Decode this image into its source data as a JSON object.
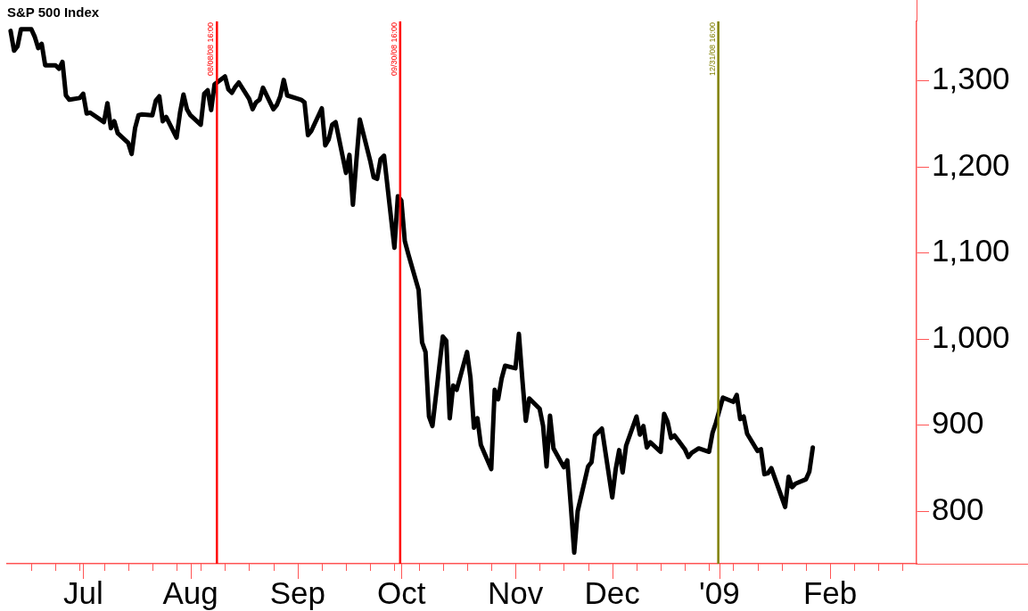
{
  "chart_data": {
    "type": "line",
    "title": "S&P 500 Index",
    "x": [
      "2008-06-10",
      "2008-06-11",
      "2008-06-12",
      "2008-06-13",
      "2008-06-16",
      "2008-06-17",
      "2008-06-18",
      "2008-06-19",
      "2008-06-20",
      "2008-06-23",
      "2008-06-24",
      "2008-06-25",
      "2008-06-26",
      "2008-06-27",
      "2008-06-30",
      "2008-07-01",
      "2008-07-02",
      "2008-07-03",
      "2008-07-07",
      "2008-07-08",
      "2008-07-09",
      "2008-07-10",
      "2008-07-11",
      "2008-07-14",
      "2008-07-15",
      "2008-07-16",
      "2008-07-17",
      "2008-07-18",
      "2008-07-21",
      "2008-07-22",
      "2008-07-23",
      "2008-07-24",
      "2008-07-25",
      "2008-07-28",
      "2008-07-29",
      "2008-07-30",
      "2008-07-31",
      "2008-08-01",
      "2008-08-04",
      "2008-08-05",
      "2008-08-06",
      "2008-08-07",
      "2008-08-08",
      "2008-08-11",
      "2008-08-12",
      "2008-08-13",
      "2008-08-14",
      "2008-08-15",
      "2008-08-18",
      "2008-08-19",
      "2008-08-20",
      "2008-08-21",
      "2008-08-22",
      "2008-08-25",
      "2008-08-26",
      "2008-08-27",
      "2008-08-28",
      "2008-08-29",
      "2008-09-02",
      "2008-09-03",
      "2008-09-04",
      "2008-09-05",
      "2008-09-08",
      "2008-09-09",
      "2008-09-10",
      "2008-09-11",
      "2008-09-12",
      "2008-09-15",
      "2008-09-16",
      "2008-09-17",
      "2008-09-18",
      "2008-09-19",
      "2008-09-22",
      "2008-09-23",
      "2008-09-24",
      "2008-09-25",
      "2008-09-26",
      "2008-09-29",
      "2008-09-30",
      "2008-10-01",
      "2008-10-02",
      "2008-10-03",
      "2008-10-06",
      "2008-10-07",
      "2008-10-08",
      "2008-10-09",
      "2008-10-10",
      "2008-10-13",
      "2008-10-14",
      "2008-10-15",
      "2008-10-16",
      "2008-10-17",
      "2008-10-20",
      "2008-10-21",
      "2008-10-22",
      "2008-10-23",
      "2008-10-24",
      "2008-10-27",
      "2008-10-28",
      "2008-10-29",
      "2008-10-30",
      "2008-10-31",
      "2008-11-03",
      "2008-11-04",
      "2008-11-05",
      "2008-11-06",
      "2008-11-07",
      "2008-11-10",
      "2008-11-11",
      "2008-11-12",
      "2008-11-13",
      "2008-11-14",
      "2008-11-17",
      "2008-11-18",
      "2008-11-19",
      "2008-11-20",
      "2008-11-21",
      "2008-11-24",
      "2008-11-25",
      "2008-11-26",
      "2008-11-28",
      "2008-12-01",
      "2008-12-02",
      "2008-12-03",
      "2008-12-04",
      "2008-12-05",
      "2008-12-08",
      "2008-12-09",
      "2008-12-10",
      "2008-12-11",
      "2008-12-12",
      "2008-12-15",
      "2008-12-16",
      "2008-12-17",
      "2008-12-18",
      "2008-12-19",
      "2008-12-22",
      "2008-12-23",
      "2008-12-24",
      "2008-12-26",
      "2008-12-29",
      "2008-12-30",
      "2008-12-31",
      "2009-01-02",
      "2009-01-05",
      "2009-01-06",
      "2009-01-07",
      "2009-01-08",
      "2009-01-09",
      "2009-01-12",
      "2009-01-13",
      "2009-01-14",
      "2009-01-15",
      "2009-01-16",
      "2009-01-20",
      "2009-01-21",
      "2009-01-22",
      "2009-01-23",
      "2009-01-26",
      "2009-01-27",
      "2009-01-28"
    ],
    "series": [
      {
        "color": "#000000",
        "values": [
          1358,
          1335,
          1340,
          1360,
          1360,
          1351,
          1338,
          1343,
          1318,
          1318,
          1314,
          1322,
          1283,
          1278,
          1280,
          1285,
          1262,
          1263,
          1252,
          1274,
          1245,
          1253,
          1239,
          1228,
          1215,
          1245,
          1260,
          1261,
          1260,
          1277,
          1282,
          1253,
          1258,
          1234,
          1263,
          1284,
          1267,
          1260,
          1249,
          1285,
          1289,
          1266,
          1296,
          1305,
          1290,
          1286,
          1293,
          1298,
          1279,
          1267,
          1275,
          1278,
          1292,
          1267,
          1272,
          1282,
          1301,
          1283,
          1278,
          1275,
          1237,
          1242,
          1268,
          1225,
          1232,
          1249,
          1252,
          1193,
          1214,
          1156,
          1207,
          1255,
          1207,
          1188,
          1186,
          1209,
          1213,
          1106,
          1166,
          1161,
          1114,
          1099,
          1057,
          996,
          985,
          910,
          899,
          1003,
          998,
          908,
          946,
          941,
          985,
          955,
          897,
          908,
          877,
          849,
          941,
          930,
          954,
          969,
          966,
          1006,
          953,
          905,
          931,
          919,
          899,
          852,
          911,
          873,
          851,
          859,
          807,
          752,
          800,
          852,
          857,
          888,
          896,
          816,
          849,
          871,
          845,
          876,
          910,
          889,
          899,
          874,
          880,
          869,
          913,
          904,
          885,
          888,
          872,
          863,
          868,
          873,
          869,
          891,
          903,
          932,
          927,
          935,
          907,
          910,
          890,
          870,
          872,
          843,
          844,
          850,
          805,
          840,
          828,
          832,
          837,
          846,
          874
        ]
      }
    ],
    "xlim": [
      "2008-06-09",
      "2009-02-27"
    ],
    "xticks": [
      {
        "value": "2008-06-16",
        "label": null
      },
      {
        "value": "2008-06-23",
        "label": null
      },
      {
        "value": "2008-06-30",
        "label": null
      },
      {
        "value": "2008-07-01",
        "label": "Jul"
      },
      {
        "value": "2008-07-07",
        "label": null
      },
      {
        "value": "2008-07-14",
        "label": null
      },
      {
        "value": "2008-07-21",
        "label": null
      },
      {
        "value": "2008-07-28",
        "label": null
      },
      {
        "value": "2008-08-01",
        "label": "Aug"
      },
      {
        "value": "2008-08-04",
        "label": null
      },
      {
        "value": "2008-08-11",
        "label": null
      },
      {
        "value": "2008-08-18",
        "label": null
      },
      {
        "value": "2008-08-25",
        "label": null
      },
      {
        "value": "2008-09-01",
        "label": "Sep"
      },
      {
        "value": "2008-09-08",
        "label": null
      },
      {
        "value": "2008-09-15",
        "label": null
      },
      {
        "value": "2008-09-22",
        "label": null
      },
      {
        "value": "2008-09-29",
        "label": null
      },
      {
        "value": "2008-10-01",
        "label": "Oct"
      },
      {
        "value": "2008-10-06",
        "label": null
      },
      {
        "value": "2008-10-13",
        "label": null
      },
      {
        "value": "2008-10-20",
        "label": null
      },
      {
        "value": "2008-10-27",
        "label": null
      },
      {
        "value": "2008-11-03",
        "label": "Nov"
      },
      {
        "value": "2008-11-10",
        "label": null
      },
      {
        "value": "2008-11-17",
        "label": null
      },
      {
        "value": "2008-11-24",
        "label": null
      },
      {
        "value": "2008-12-01",
        "label": "Dec"
      },
      {
        "value": "2008-12-08",
        "label": null
      },
      {
        "value": "2008-12-15",
        "label": null
      },
      {
        "value": "2008-12-22",
        "label": null
      },
      {
        "value": "2008-12-29",
        "label": null
      },
      {
        "value": "2009-01-01",
        "label": "'09"
      },
      {
        "value": "2009-01-05",
        "label": null
      },
      {
        "value": "2009-01-12",
        "label": null
      },
      {
        "value": "2009-01-19",
        "label": null
      },
      {
        "value": "2009-01-26",
        "label": null
      },
      {
        "value": "2009-02-02",
        "label": "Feb"
      },
      {
        "value": "2009-02-09",
        "label": null
      },
      {
        "value": "2009-02-16",
        "label": null
      },
      {
        "value": "2009-02-23",
        "label": null
      }
    ],
    "ylim": [
      739,
      1369
    ],
    "yticks": [
      800,
      900,
      {
        "value": 1000,
        "label": "1,000"
      },
      {
        "value": 1100,
        "label": "1,100"
      },
      {
        "value": 1200,
        "label": "1,200"
      },
      {
        "value": 1300,
        "label": "1,300"
      }
    ],
    "ref_lines": [
      {
        "axis": "x",
        "value": "2008-08-08T16:00",
        "label": "08/08/08 16:00",
        "color": "#ff0000"
      },
      {
        "axis": "x",
        "value": "2008-09-30T16:00",
        "label": "09/30/08 16:00",
        "color": "#ff0000"
      },
      {
        "axis": "x",
        "value": "2008-12-31T16:00",
        "label": "12/31/08 16:00",
        "color": "#808000"
      }
    ]
  }
}
